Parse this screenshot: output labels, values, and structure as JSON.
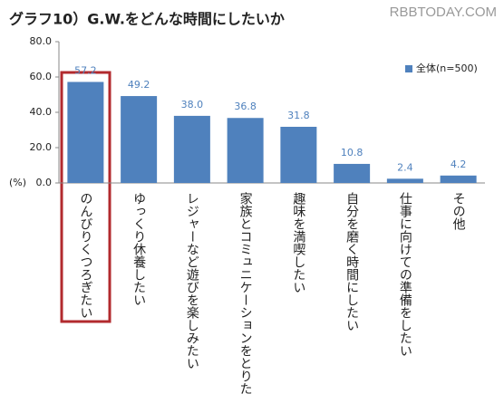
{
  "chart_data": {
    "type": "bar",
    "title": "グラフ10）G.W.をどんな時間にしたいか",
    "watermark": "RBBTODAY.COM",
    "ylabel": "(%)",
    "categories": [
      "のんびりくつろぎたい",
      "ゆっくり休養したい",
      "レジャーなど遊びを楽しみたい",
      "家族とコミュニケーションをとりたい",
      "趣味を満喫したい",
      "自分を磨く時間にしたい",
      "仕事に向けての準備をしたい",
      "その他"
    ],
    "series": [
      {
        "name": "全体(n=500)",
        "color": "#4f81bd",
        "values": [
          57.2,
          49.2,
          38.0,
          36.8,
          31.8,
          10.8,
          2.4,
          4.2
        ],
        "value_labels": [
          "57.2",
          "49.2",
          "38.0",
          "36.8",
          "31.8",
          "10.8",
          "2.4",
          "4.2"
        ]
      }
    ],
    "ylim": [
      0,
      80
    ],
    "yticks": [
      {
        "value": 0,
        "label": "0.0"
      },
      {
        "value": 20,
        "label": "20.0"
      },
      {
        "value": 40,
        "label": "40.0"
      },
      {
        "value": 60,
        "label": "60.0"
      },
      {
        "value": 80,
        "label": "80.0"
      }
    ],
    "grid": false,
    "legend": "upper right"
  }
}
